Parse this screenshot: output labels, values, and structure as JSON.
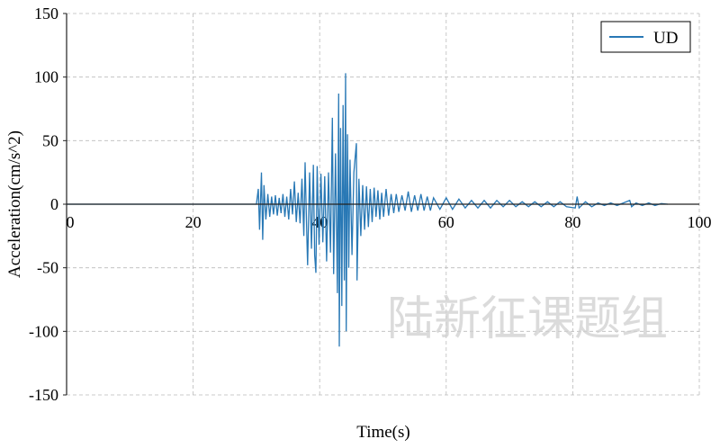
{
  "chart_data": {
    "type": "line",
    "title": "",
    "xlabel": "Time(s)",
    "ylabel": "Acceleration(cm/s^2)",
    "xlim": [
      0,
      100
    ],
    "ylim": [
      -150,
      150
    ],
    "xticks": [
      0,
      20,
      40,
      60,
      80,
      100
    ],
    "yticks": [
      -150,
      -100,
      -50,
      0,
      50,
      100,
      150
    ],
    "xtick_labels": [
      "0",
      "20",
      "40",
      "60",
      "80",
      "100"
    ],
    "ytick_labels": [
      "-150",
      "-100",
      "-50",
      "0",
      "50",
      "100",
      "150"
    ],
    "grid": true,
    "legend_position": "top-right",
    "watermark": "陆新征课题组",
    "series": [
      {
        "name": "UD",
        "color": "#2878b5",
        "points": [
          [
            0,
            0
          ],
          [
            30.0,
            0
          ],
          [
            30.3,
            12
          ],
          [
            30.5,
            -20
          ],
          [
            30.8,
            25
          ],
          [
            31.0,
            -28
          ],
          [
            31.2,
            15
          ],
          [
            31.5,
            -12
          ],
          [
            31.8,
            8
          ],
          [
            32.1,
            -10
          ],
          [
            32.4,
            6
          ],
          [
            32.7,
            -8
          ],
          [
            33.0,
            7
          ],
          [
            33.3,
            -9
          ],
          [
            33.6,
            5
          ],
          [
            33.9,
            -7
          ],
          [
            34.2,
            8
          ],
          [
            34.5,
            -10
          ],
          [
            34.8,
            6
          ],
          [
            35.1,
            -12
          ],
          [
            35.4,
            12
          ],
          [
            35.7,
            -8
          ],
          [
            36.0,
            18
          ],
          [
            36.3,
            -14
          ],
          [
            36.6,
            9
          ],
          [
            36.9,
            -15
          ],
          [
            37.2,
            20
          ],
          [
            37.5,
            -25
          ],
          [
            37.7,
            33
          ],
          [
            38.0,
            -30
          ],
          [
            38.1,
            -48
          ],
          [
            38.4,
            25
          ],
          [
            38.7,
            -35
          ],
          [
            39.0,
            31
          ],
          [
            39.2,
            -40
          ],
          [
            39.4,
            -54
          ],
          [
            39.6,
            30
          ],
          [
            39.9,
            -32
          ],
          [
            40.2,
            24
          ],
          [
            40.5,
            -30
          ],
          [
            40.8,
            22
          ],
          [
            41.1,
            -45
          ],
          [
            41.4,
            25
          ],
          [
            41.7,
            -38
          ],
          [
            42.0,
            68
          ],
          [
            42.2,
            -55
          ],
          [
            42.5,
            40
          ],
          [
            42.8,
            -70
          ],
          [
            43.0,
            87
          ],
          [
            43.1,
            -112
          ],
          [
            43.3,
            60
          ],
          [
            43.5,
            -80
          ],
          [
            43.7,
            78
          ],
          [
            43.9,
            -60
          ],
          [
            44.1,
            103
          ],
          [
            44.2,
            -100
          ],
          [
            44.4,
            55
          ],
          [
            44.6,
            -50
          ],
          [
            44.8,
            35
          ],
          [
            45.1,
            -40
          ],
          [
            45.4,
            25
          ],
          [
            45.8,
            48
          ],
          [
            45.9,
            -60
          ],
          [
            46.2,
            20
          ],
          [
            46.5,
            -25
          ],
          [
            46.8,
            15
          ],
          [
            47.1,
            -20
          ],
          [
            47.4,
            14
          ],
          [
            47.7,
            -18
          ],
          [
            48.0,
            12
          ],
          [
            48.3,
            -14
          ],
          [
            48.6,
            13
          ],
          [
            48.9,
            -10
          ],
          [
            49.2,
            11
          ],
          [
            49.5,
            -12
          ],
          [
            49.8,
            9
          ],
          [
            50.1,
            -10
          ],
          [
            50.5,
            12
          ],
          [
            50.9,
            -9
          ],
          [
            51.3,
            8
          ],
          [
            51.7,
            -7
          ],
          [
            52.1,
            8
          ],
          [
            52.5,
            -6
          ],
          [
            53.0,
            7
          ],
          [
            53.5,
            -5
          ],
          [
            54.0,
            10
          ],
          [
            54.5,
            -6
          ],
          [
            55.0,
            7
          ],
          [
            55.5,
            -5
          ],
          [
            56.0,
            8
          ],
          [
            56.5,
            -5
          ],
          [
            57.0,
            6
          ],
          [
            57.5,
            -5
          ],
          [
            58.0,
            5
          ],
          [
            59,
            -4
          ],
          [
            60,
            5
          ],
          [
            61,
            -4
          ],
          [
            62,
            4
          ],
          [
            63,
            -3
          ],
          [
            64,
            3
          ],
          [
            65,
            -3
          ],
          [
            66,
            3
          ],
          [
            67,
            -3
          ],
          [
            68,
            3
          ],
          [
            69,
            -2
          ],
          [
            70,
            3
          ],
          [
            71,
            -2
          ],
          [
            72,
            2
          ],
          [
            73,
            -2
          ],
          [
            74,
            2
          ],
          [
            75,
            -2
          ],
          [
            76,
            2
          ],
          [
            77,
            -2
          ],
          [
            78,
            2
          ],
          [
            79,
            -2
          ],
          [
            80.4,
            -3
          ],
          [
            80.7,
            6
          ],
          [
            81,
            -3
          ],
          [
            82,
            2
          ],
          [
            83,
            -2
          ],
          [
            84,
            1
          ],
          [
            85,
            -1
          ],
          [
            86,
            1
          ],
          [
            87,
            -1
          ],
          [
            88,
            1
          ],
          [
            89.0,
            3
          ],
          [
            89.3,
            -2
          ],
          [
            90,
            1
          ],
          [
            91,
            -1
          ],
          [
            92,
            1
          ],
          [
            93,
            -1
          ],
          [
            94,
            0.5
          ],
          [
            95,
            0
          ]
        ]
      }
    ]
  }
}
